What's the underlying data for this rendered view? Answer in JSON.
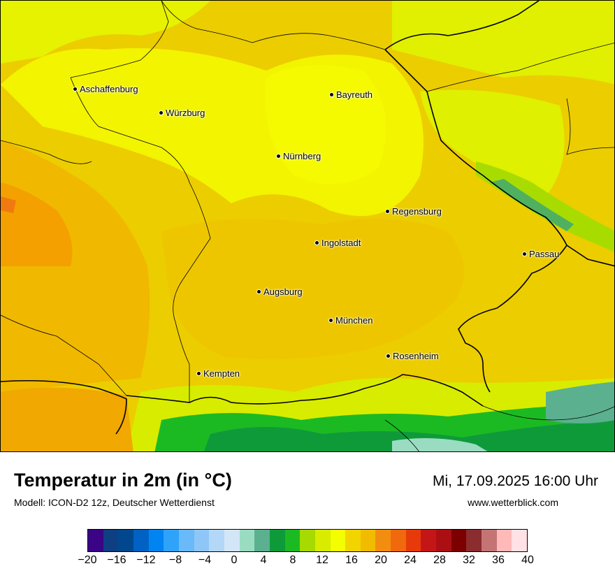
{
  "map": {
    "cities": [
      {
        "name": "Aschaffenburg"
      },
      {
        "name": "Würzburg"
      },
      {
        "name": "Bayreuth"
      },
      {
        "name": "Nürnberg"
      },
      {
        "name": "Regensburg"
      },
      {
        "name": "Ingolstadt"
      },
      {
        "name": "Passau"
      },
      {
        "name": "Augsburg"
      },
      {
        "name": "München"
      },
      {
        "name": "Rosenheim"
      },
      {
        "name": "Kempten"
      }
    ]
  },
  "footer": {
    "title": "Temperatur in 2m (in °C)",
    "model": "Modell: ICON-D2 12z, Deutscher Wetterdienst",
    "datetime": "Mi, 17.09.2025 16:00 Uhr",
    "website": "www.wetterblick.com"
  },
  "legend": {
    "min": -20,
    "max": 40,
    "colors": [
      "#3b0486",
      "#0d3f82",
      "#00478d",
      "#0062c4",
      "#0084f2",
      "#2fa3f9",
      "#6ab9f8",
      "#8ec7f7",
      "#b3d8f7",
      "#d3e6f8",
      "#9adcc2",
      "#5bb08f",
      "#0f9a3a",
      "#1cba22",
      "#a6da00",
      "#d8ec00",
      "#f3ff00",
      "#f2d400",
      "#f1bc00",
      "#f38d0f",
      "#f0690c",
      "#e73a0b",
      "#c51617",
      "#ab0f13",
      "#7c0000",
      "#8b2c2f",
      "#c47475",
      "#ffb9b8",
      "#ffe1e6"
    ],
    "tick_labels": [
      "−20",
      "−16",
      "−12",
      "−8",
      "−4",
      "0",
      "4",
      "8",
      "12",
      "16",
      "20",
      "24",
      "28",
      "32",
      "36",
      "40"
    ]
  }
}
